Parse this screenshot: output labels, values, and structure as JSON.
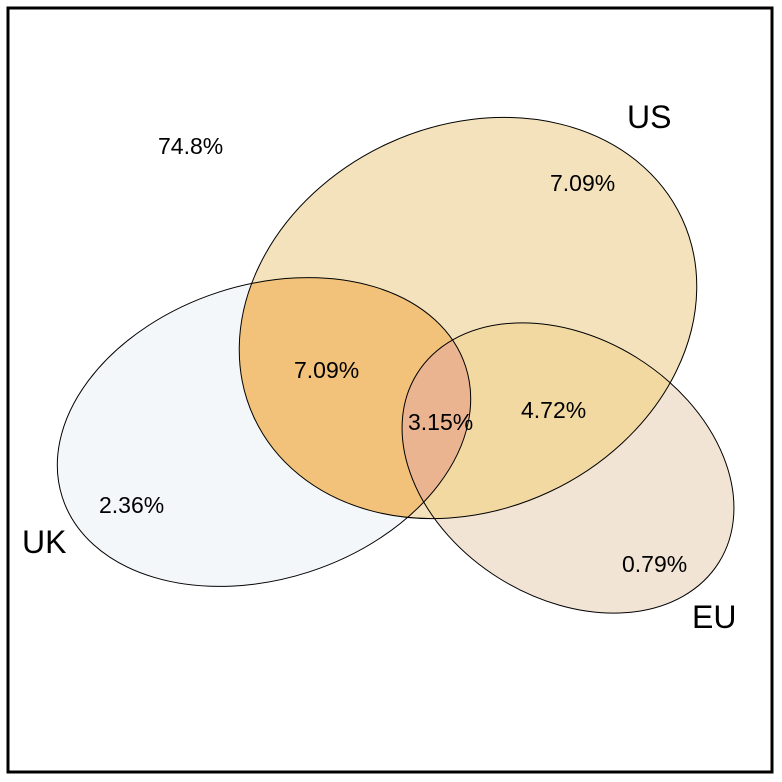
{
  "sets": {
    "us": {
      "label": "US",
      "fill": "#F3E2BC"
    },
    "uk": {
      "label": "UK",
      "fill": "#F4F7FA"
    },
    "eu": {
      "label": "EU",
      "fill": "#F2E4D4"
    }
  },
  "overlap_colors": {
    "uk_us": "#F2C27A",
    "us_eu": "#F2D9A2",
    "uk_us_eu": "#EAB491"
  },
  "regions": {
    "none": "74.8%",
    "us_only": "7.09%",
    "uk_us": "7.09%",
    "uk_us_eu": "3.15%",
    "us_eu": "4.72%",
    "uk_only": "2.36%",
    "eu_only": "0.79%"
  }
}
